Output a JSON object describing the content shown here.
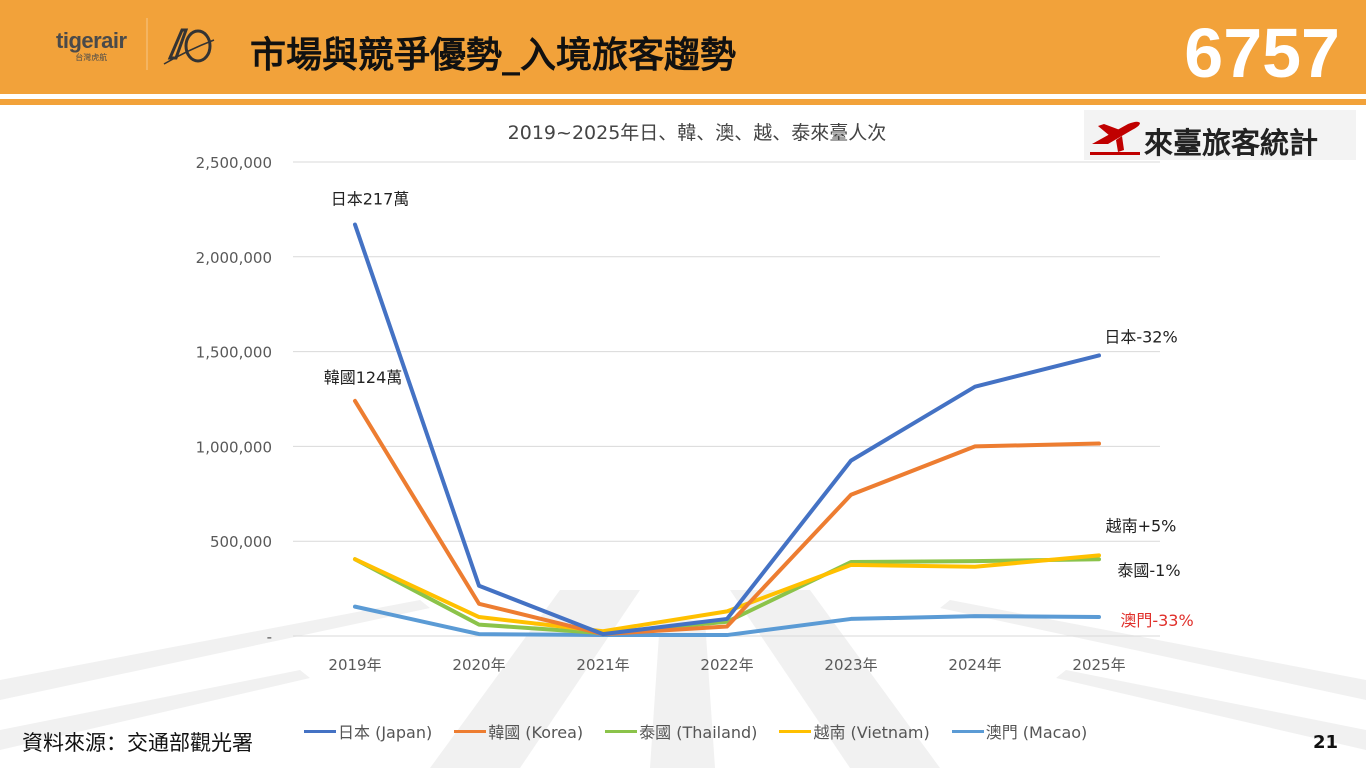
{
  "header": {
    "logo_brand": "tigerair",
    "logo_sub": "台灣虎航",
    "title": "市場與競爭優勢_入境旅客趨勢",
    "code": "6757"
  },
  "badge": {
    "label": "來臺旅客統計"
  },
  "footer": {
    "source": "資料來源：交通部觀光署",
    "page": "21"
  },
  "colors": {
    "header": "#f2a23a",
    "japan": "#4472c4",
    "korea": "#ed7d31",
    "thailand": "#8bc34a",
    "vietnam": "#ffc000",
    "macao": "#5b9bd5",
    "badge_red": "#c00000"
  },
  "chart_data": {
    "type": "line",
    "title": "2019~2025年日、韓、澳、越、泰來臺人次",
    "categories": [
      "2019年",
      "2020年",
      "2021年",
      "2022年",
      "2023年",
      "2024年",
      "2025年"
    ],
    "ylim": [
      0,
      2500000
    ],
    "yticks": [
      0,
      500000,
      1000000,
      1500000,
      2000000,
      2500000
    ],
    "ytick_labels": [
      "-",
      "500,000",
      "1,000,000",
      "1,500,000",
      "2,000,000",
      "2,500,000"
    ],
    "grid": true,
    "legend_position": "bottom",
    "series": [
      {
        "name": "日本 (Japan)",
        "color": "#4472c4",
        "values": [
          2170000,
          265000,
          10000,
          90000,
          925000,
          1315000,
          1480000
        ]
      },
      {
        "name": "韓國 (Korea)",
        "color": "#ed7d31",
        "values": [
          1240000,
          170000,
          10000,
          50000,
          745000,
          1000000,
          1015000
        ]
      },
      {
        "name": "泰國 (Thailand)",
        "color": "#8bc34a",
        "values": [
          405000,
          60000,
          15000,
          75000,
          390000,
          395000,
          405000
        ]
      },
      {
        "name": "越南 (Vietnam)",
        "color": "#ffc000",
        "values": [
          405000,
          100000,
          25000,
          130000,
          375000,
          365000,
          425000
        ]
      },
      {
        "name": "澳門 (Macao)",
        "color": "#5b9bd5",
        "values": [
          155000,
          10000,
          5000,
          5000,
          90000,
          105000,
          100000
        ]
      }
    ],
    "annotations": [
      {
        "text": "日本217萬",
        "series": 0,
        "index": 0
      },
      {
        "text": "韓國124萬",
        "series": 1,
        "index": 0
      },
      {
        "text": "日本-32%",
        "series": 0,
        "index": 6
      },
      {
        "text": "越南+5%",
        "series": 3,
        "index": 6
      },
      {
        "text": "泰國-1%",
        "series": 2,
        "index": 6
      },
      {
        "text": "澳門-33%",
        "series": 4,
        "index": 6,
        "color": "#e0302b"
      }
    ]
  }
}
